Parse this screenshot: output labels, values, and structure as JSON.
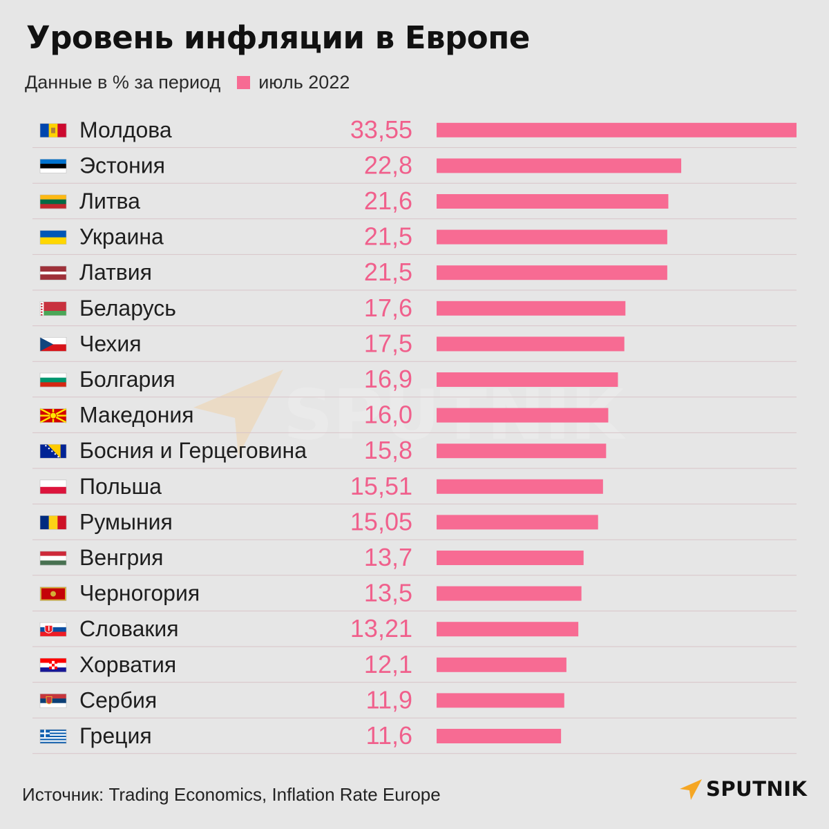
{
  "title": "Уровень инфляции в Европе",
  "subtitle": "Данные в % за период",
  "legend_label": "июль 2022",
  "source": "Источник: Trading Economics, Inflation Rate Europe",
  "brand": "SPUTNIK",
  "watermark": "SPUTNIK",
  "colors": {
    "bar": "#f76b93",
    "value": "#f0608c",
    "background": "#e6e6e6",
    "separator": "#d8c4c8",
    "brand_accent": "#f5a623"
  },
  "chart_data": {
    "type": "bar",
    "orientation": "horizontal",
    "series": [
      {
        "name": "июль 2022"
      }
    ],
    "categories": [
      "Молдова",
      "Эстония",
      "Литва",
      "Украина",
      "Латвия",
      "Беларусь",
      "Чехия",
      "Болгария",
      "Македония",
      "Босния и Герцеговина",
      "Польша",
      "Румыния",
      "Венгрия",
      "Черногория",
      "Словакия",
      "Хорватия",
      "Сербия",
      "Греция"
    ],
    "values": [
      33.55,
      22.8,
      21.6,
      21.5,
      21.5,
      17.6,
      17.5,
      16.9,
      16.0,
      15.8,
      15.51,
      15.05,
      13.7,
      13.5,
      13.21,
      12.1,
      11.9,
      11.6
    ],
    "value_labels": [
      "33,55",
      "22,8",
      "21,6",
      "21,5",
      "21,5",
      "17,6",
      "17,5",
      "16,9",
      "16,0",
      "15,8",
      "15,51",
      "15,05",
      "13,7",
      "13,5",
      "13,21",
      "12,1",
      "11,9",
      "11,6"
    ],
    "flags": [
      "moldova-flag-icon",
      "estonia-flag-icon",
      "lithuania-flag-icon",
      "ukraine-flag-icon",
      "latvia-flag-icon",
      "belarus-flag-icon",
      "czechia-flag-icon",
      "bulgaria-flag-icon",
      "macedonia-flag-icon",
      "bosnia-flag-icon",
      "poland-flag-icon",
      "romania-flag-icon",
      "hungary-flag-icon",
      "montenegro-flag-icon",
      "slovakia-flag-icon",
      "croatia-flag-icon",
      "serbia-flag-icon",
      "greece-flag-icon"
    ],
    "xlim": [
      0,
      33.55
    ],
    "grid": false
  }
}
